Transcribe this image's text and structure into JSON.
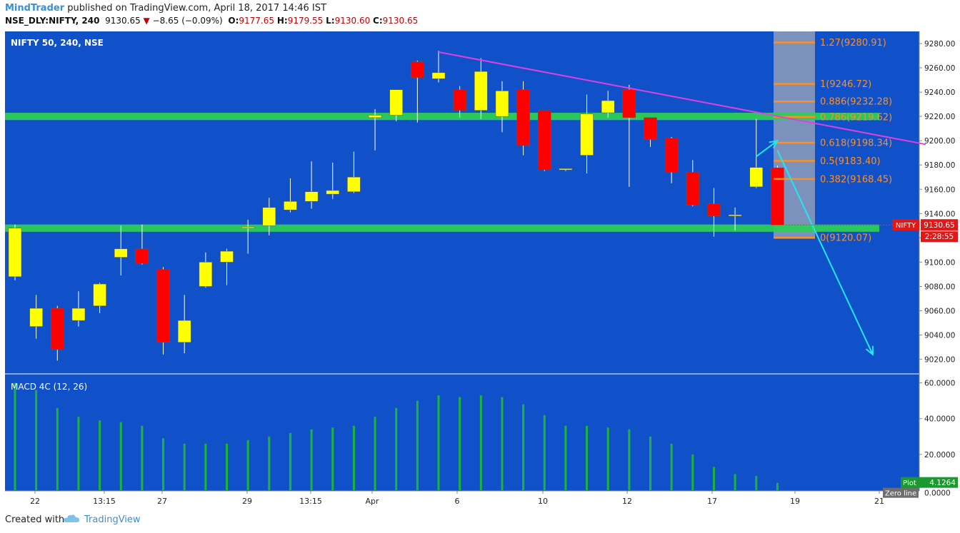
{
  "header": {
    "author": "MindTrader",
    "published_text": "published on TradingView.com, April 18, 2017 14:46 IST",
    "symbol": "NSE_DLY:NIFTY, 240",
    "last": "9130.65",
    "change": "−8.65 (−0.09%)",
    "o_label": "O:",
    "o_value": "9177.65",
    "h_label": "H:",
    "h_value": "9179.55",
    "l_label": "L:",
    "l_value": "9130.60",
    "c_label": "C:",
    "c_value": "9130.65"
  },
  "footer": {
    "created_with": "Created with",
    "brand": "TradingView"
  },
  "colors": {
    "background": "#1050c8",
    "bull": "#ffff00",
    "bear": "#ff0000",
    "zone": "#2ecc5a",
    "trendline": "#e040e0",
    "arrow": "#20e8f0",
    "fib": "#ff9020",
    "macd": "#1eb43c"
  },
  "chart_data": [
    {
      "type": "candlestick",
      "title": "NIFTY 50, 240, NSE",
      "ylim": [
        9008,
        9290
      ],
      "y_ticks": [
        "9280.00",
        "9260.00",
        "9240.00",
        "9220.00",
        "9200.00",
        "9180.00",
        "9160.00",
        "9140.00",
        "9120.00",
        "9100.00",
        "9080.00",
        "9060.00",
        "9040.00",
        "9020.00"
      ],
      "x_ticks": [
        "22",
        "13:15",
        "27",
        "29",
        "13:15",
        "Apr",
        "6",
        "10",
        "12",
        "17",
        "19",
        "21"
      ],
      "price_tag": {
        "symbol": "NIFTY",
        "value": "9130.65",
        "countdown": "2:28:55"
      },
      "candles": [
        {
          "o": 9088,
          "h": 9131,
          "l": 9085,
          "c": 9128
        },
        {
          "o": 9047,
          "h": 9073,
          "l": 9037,
          "c": 9062
        },
        {
          "o": 9062,
          "h": 9064,
          "l": 9019,
          "c": 9028
        },
        {
          "o": 9052,
          "h": 9076,
          "l": 9047,
          "c": 9062
        },
        {
          "o": 9064,
          "h": 9083,
          "l": 9058,
          "c": 9082
        },
        {
          "o": 9104,
          "h": 9130,
          "l": 9089,
          "c": 9111
        },
        {
          "o": 9111,
          "h": 9131,
          "l": 9098,
          "c": 9099
        },
        {
          "o": 9094,
          "h": 9096,
          "l": 9024,
          "c": 9034
        },
        {
          "o": 9034,
          "h": 9073,
          "l": 9025,
          "c": 9052
        },
        {
          "o": 9080,
          "h": 9108,
          "l": 9079,
          "c": 9100
        },
        {
          "o": 9100,
          "h": 9111,
          "l": 9081,
          "c": 9109
        },
        {
          "o": 9128,
          "h": 9135,
          "l": 9107,
          "c": 9129
        },
        {
          "o": 9130,
          "h": 9153,
          "l": 9122,
          "c": 9145
        },
        {
          "o": 9143,
          "h": 9169,
          "l": 9141,
          "c": 9150
        },
        {
          "o": 9150,
          "h": 9183,
          "l": 9144,
          "c": 9158
        },
        {
          "o": 9156,
          "h": 9182,
          "l": 9152,
          "c": 9159
        },
        {
          "o": 9158,
          "h": 9191,
          "l": 9157,
          "c": 9170
        },
        {
          "o": 9219,
          "h": 9226,
          "l": 9192,
          "c": 9221
        },
        {
          "o": 9221,
          "h": 9242,
          "l": 9216,
          "c": 9242
        },
        {
          "o": 9265,
          "h": 9266,
          "l": 9215,
          "c": 9252
        },
        {
          "o": 9251,
          "h": 9274,
          "l": 9248,
          "c": 9256
        },
        {
          "o": 9242,
          "h": 9245,
          "l": 9219,
          "c": 9225
        },
        {
          "o": 9225,
          "h": 9268,
          "l": 9218,
          "c": 9257
        },
        {
          "o": 9220,
          "h": 9249,
          "l": 9207,
          "c": 9241
        },
        {
          "o": 9242,
          "h": 9249,
          "l": 9188,
          "c": 9196
        },
        {
          "o": 9225,
          "h": 9225,
          "l": 9175,
          "c": 9176
        },
        {
          "o": 9176,
          "h": 9177,
          "l": 9175,
          "c": 9177
        },
        {
          "o": 9188,
          "h": 9238,
          "l": 9173,
          "c": 9222
        },
        {
          "o": 9223,
          "h": 9241,
          "l": 9219,
          "c": 9233
        },
        {
          "o": 9242,
          "h": 9246,
          "l": 9162,
          "c": 9219
        },
        {
          "o": 9219,
          "h": 9219,
          "l": 9195,
          "c": 9201
        },
        {
          "o": 9202,
          "h": 9203,
          "l": 9165,
          "c": 9174
        },
        {
          "o": 9174,
          "h": 9184,
          "l": 9146,
          "c": 9147
        },
        {
          "o": 9148,
          "h": 9161,
          "l": 9121,
          "c": 9138
        },
        {
          "o": 9138,
          "h": 9145,
          "l": 9126,
          "c": 9139
        },
        {
          "o": 9162,
          "h": 9218,
          "l": 9161,
          "c": 9178
        },
        {
          "o": 9177.65,
          "h": 9179.55,
          "l": 9130.6,
          "c": 9130.65
        }
      ],
      "support_zones": [
        [
          9217,
          9223
        ],
        [
          9125,
          9131
        ]
      ],
      "fibonacci": [
        {
          "ratio": "1.27",
          "value": 9280.91,
          "label": "1.27(9280.91)"
        },
        {
          "ratio": "1",
          "value": 9246.72,
          "label": "1(9246.72)"
        },
        {
          "ratio": "0.886",
          "value": 9232.28,
          "label": "0.886(9232.28)"
        },
        {
          "ratio": "0.786",
          "value": 9219.62,
          "label": "0.786(9219.62)"
        },
        {
          "ratio": "0.618",
          "value": 9198.34,
          "label": "0.618(9198.34)"
        },
        {
          "ratio": "0.5",
          "value": 9183.4,
          "label": "0.5(9183.40)"
        },
        {
          "ratio": "0.382",
          "value": 9168.45,
          "label": "0.382(9168.45)"
        },
        {
          "ratio": "0",
          "value": 9120.07,
          "label": "0(9120.07)"
        }
      ],
      "trendline": {
        "from": {
          "bar": 20,
          "price": 9273
        },
        "to": {
          "bar": 43,
          "price": 9197
        }
      },
      "arrows": [
        {
          "from": {
            "bar": 35,
            "price": 9187
          },
          "to": {
            "bar": 36,
            "price": 9200
          }
        },
        {
          "from": {
            "bar": 36,
            "price": 9192
          },
          "to": {
            "bar": 40.5,
            "price": 9024
          }
        }
      ]
    },
    {
      "type": "bar",
      "title": "MACD 4C (12, 26)",
      "ylim": [
        0,
        65
      ],
      "y_ticks": [
        "60.0000",
        "40.0000",
        "20.0000",
        "0.0000"
      ],
      "values": [
        60,
        56,
        46,
        41,
        39,
        38,
        36,
        29,
        26,
        26,
        26,
        28,
        30,
        32,
        34,
        35,
        36,
        41,
        46,
        50,
        53,
        52,
        53,
        52,
        48,
        42,
        36,
        36,
        35,
        34,
        30,
        26,
        20,
        13,
        9,
        8,
        4.1264
      ],
      "last_value_label": "Plot",
      "last_value": "4.1264",
      "zero_label": "Zero line",
      "zero_value": "0.0000"
    }
  ]
}
